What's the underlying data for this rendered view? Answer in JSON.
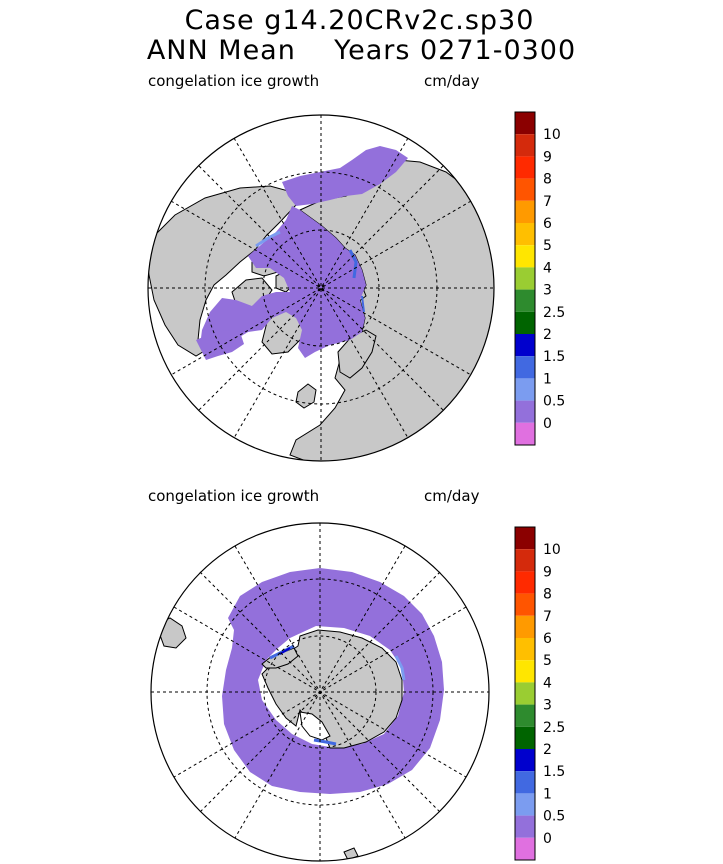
{
  "header": {
    "title_line1": "Case g14.20CRv2c.sp30",
    "title_line2": "ANN Mean    Years 0271-0300"
  },
  "colorbar": {
    "levels": [
      "10",
      "9",
      "8",
      "7",
      "6",
      "5",
      "4",
      "3",
      "2.5",
      "2",
      "1.5",
      "1",
      "0.5",
      "0"
    ],
    "colors": [
      "#8b0000",
      "#d42a0c",
      "#ff2a00",
      "#ff5500",
      "#ff9a00",
      "#ffbf00",
      "#ffe600",
      "#9acd32",
      "#2e8b2e",
      "#006400",
      "#0000cd",
      "#4169e1",
      "#7b9cf0",
      "#9370db",
      "#e070e0"
    ]
  },
  "chart_data": [
    {
      "type": "polar-map",
      "title": "congelation ice growth",
      "units": "cm/day",
      "hemisphere": "north",
      "legend_levels": [
        "10",
        "9",
        "8",
        "7",
        "6",
        "5",
        "4",
        "3",
        "2.5",
        "2",
        "1.5",
        "1",
        "0.5",
        "0"
      ],
      "dominant_value_range": [
        0,
        0.5
      ],
      "max_value_range": [
        1,
        1.5
      ]
    },
    {
      "type": "polar-map",
      "title": "congelation ice growth",
      "units": "cm/day",
      "hemisphere": "south",
      "legend_levels": [
        "10",
        "9",
        "8",
        "7",
        "6",
        "5",
        "4",
        "3",
        "2.5",
        "2",
        "1.5",
        "1",
        "0.5",
        "0"
      ],
      "dominant_value_range": [
        0,
        0.5
      ],
      "max_value_range": [
        2,
        2.5
      ]
    }
  ]
}
